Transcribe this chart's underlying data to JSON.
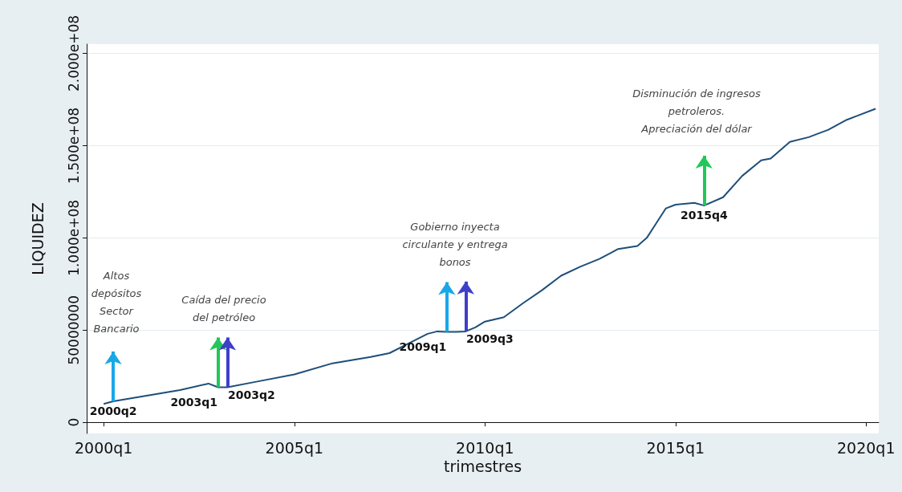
{
  "chart_data": {
    "type": "line",
    "xlabel": "trimestres",
    "ylabel": "LIQUIDEZ",
    "x": [
      "2000-01",
      "2000-04",
      "2001-01",
      "2002-01",
      "2002-10",
      "2003-01",
      "2003-04",
      "2004-01",
      "2005-01",
      "2006-01",
      "2007-01",
      "2007-07",
      "2008-01",
      "2008-07",
      "2008-10",
      "2009-01",
      "2009-04",
      "2009-07",
      "2009-10",
      "2010-01",
      "2010-07",
      "2011-01",
      "2011-07",
      "2012-01",
      "2012-07",
      "2013-01",
      "2013-07",
      "2014-01",
      "2014-04",
      "2014-07",
      "2014-10",
      "2015-01",
      "2015-07",
      "2015-10",
      "2016-04",
      "2016-10",
      "2017-04",
      "2017-07",
      "2018-01",
      "2018-07",
      "2019-01",
      "2019-07",
      "2019-10",
      "2020-04"
    ],
    "series": [
      {
        "color": "#1f4e79",
        "values": [
          10000000,
          11400000,
          14000000,
          17500000,
          21000000,
          19000000,
          19000000,
          22000000,
          26000000,
          32000000,
          35400000,
          37500000,
          42800000,
          48000000,
          49300000,
          49000000,
          49000000,
          49300000,
          51500000,
          54600000,
          57000000,
          64600000,
          71600000,
          79500000,
          84300000,
          88600000,
          94000000,
          95600000,
          100000000,
          108000000,
          116000000,
          118000000,
          119000000,
          117500000,
          122000000,
          133600000,
          142000000,
          143000000,
          152000000,
          154600000,
          158500000,
          164000000,
          166000000,
          170000000
        ]
      }
    ],
    "xlim": [
      "1999-07-22",
      "2020-05-01"
    ],
    "xticks": [
      {
        "value": "2000-01",
        "label": "2000q1"
      },
      {
        "value": "2005-01",
        "label": "2005q1"
      },
      {
        "value": "2010-01",
        "label": "2010q1"
      },
      {
        "value": "2015-01",
        "label": "2015q1"
      },
      {
        "value": "2020-01",
        "label": "2020q1"
      }
    ],
    "ylim": [
      -6000000,
      205000000
    ],
    "yticks": [
      0,
      {
        "value": 50000000,
        "label": "50000000"
      },
      {
        "value": 100000000,
        "label": "1.000e+08"
      },
      {
        "value": 150000000,
        "label": "1.500e+08"
      },
      {
        "value": 200000000,
        "label": "2.000e+08"
      }
    ],
    "grid": "y",
    "marker": "none",
    "line_style": "solid",
    "annotations": [
      {
        "text": "2000q2",
        "x": "2000-04",
        "y": 11400000
      },
      {
        "text": "2003q1",
        "x": "2003-01",
        "y": 19000000
      },
      {
        "text": "2003q2",
        "x": "2003-04",
        "y": 19000000
      },
      {
        "text": "2009q1",
        "x": "2009-01",
        "y": 49000000
      },
      {
        "text": "2009q3",
        "x": "2009-07",
        "y": 49300000
      },
      {
        "text": "2015q4",
        "x": "2015-10",
        "y": 117500000
      },
      "Altos\ndepósitos\nSector\nBancario",
      "Caída del precio\ndel petróleo",
      "Gobierno inyecta\ncirculante y entrega\nbonos",
      "Disminución de ingresos\npetroleros.\nApreciación del dólar"
    ]
  }
}
